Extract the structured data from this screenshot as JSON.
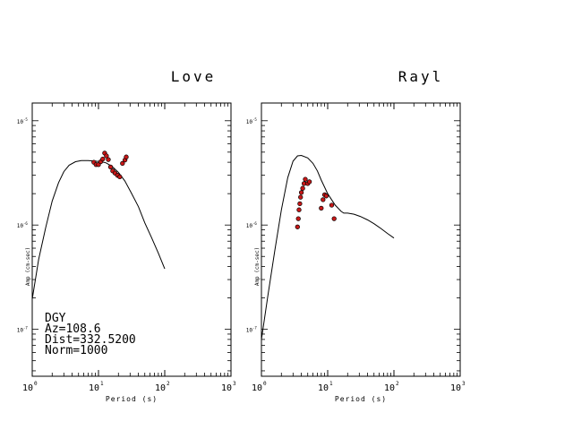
{
  "chart_data": [
    {
      "type": "line",
      "title": "Love",
      "xlabel": "Period (s)",
      "ylabel": "Amp (cm-sec)",
      "xscale": "log",
      "yscale": "log",
      "xlim": [
        1,
        1000
      ],
      "ylim": [
        1e-07,
        1e-05
      ],
      "x_ticks": [
        {
          "value": 1,
          "mant": "10",
          "exp": "0"
        },
        {
          "value": 10,
          "mant": "10",
          "exp": "1"
        },
        {
          "value": 100,
          "mant": "10",
          "exp": "2"
        },
        {
          "value": 1000,
          "mant": "10",
          "exp": "3"
        }
      ],
      "y_ticks": [
        {
          "value": 1e-05,
          "mant": "10",
          "exp": "-5"
        },
        {
          "value": 1e-06,
          "mant": "10",
          "exp": "-6"
        },
        {
          "value": 1e-07,
          "mant": "10",
          "exp": "-7"
        }
      ],
      "series": [
        {
          "kind": "line",
          "x": [
            1,
            1.25,
            1.6,
            2,
            2.5,
            3,
            3.6,
            4.5,
            5.5,
            7,
            9,
            11,
            13,
            16,
            20,
            25,
            31,
            40,
            50,
            63,
            80,
            100
          ],
          "y": [
            1.95e-07,
            4.7e-07,
            9.5e-07,
            1.7e-06,
            2.55e-06,
            3.25e-06,
            3.75e-06,
            4.05e-06,
            4.15e-06,
            4.15e-06,
            4.1e-06,
            4.05e-06,
            3.95e-06,
            3.65e-06,
            3.2e-06,
            2.65e-06,
            2.05e-06,
            1.5e-06,
            1.05e-06,
            7.6e-07,
            5.4e-07,
            3.8e-07
          ]
        },
        {
          "kind": "scatter",
          "x": [
            8.5,
            9.2,
            10,
            10.8,
            11.6,
            12.4,
            13.2,
            14.1,
            15.2,
            16.4,
            17.8,
            19.4,
            21,
            23,
            25.1,
            26.2
          ],
          "y": [
            4e-06,
            3.8e-06,
            3.8e-06,
            4.05e-06,
            4.3e-06,
            4.9e-06,
            4.6e-06,
            4.25e-06,
            3.6e-06,
            3.3e-06,
            3.15e-06,
            3e-06,
            2.9e-06,
            3.9e-06,
            4.2e-06,
            4.5e-06
          ]
        }
      ],
      "annotations": [
        "DGY",
        "Az=108.6",
        "Dist=332.5200",
        "Norm=1000"
      ]
    },
    {
      "type": "line",
      "title": "Rayl",
      "xlabel": "Period (s)",
      "ylabel": "Amp (cm-sec)",
      "xscale": "log",
      "yscale": "log",
      "xlim": [
        1,
        1000
      ],
      "ylim": [
        1e-07,
        1e-05
      ],
      "x_ticks": [
        {
          "value": 1,
          "mant": "10",
          "exp": "0"
        },
        {
          "value": 10,
          "mant": "10",
          "exp": "1"
        },
        {
          "value": 100,
          "mant": "10",
          "exp": "2"
        },
        {
          "value": 1000,
          "mant": "10",
          "exp": "3"
        }
      ],
      "y_ticks": [
        {
          "value": 1e-05,
          "mant": "10",
          "exp": "-5"
        },
        {
          "value": 1e-06,
          "mant": "10",
          "exp": "-6"
        },
        {
          "value": 1e-07,
          "mant": "10",
          "exp": "-7"
        }
      ],
      "series": [
        {
          "kind": "line",
          "x": [
            1,
            1.25,
            1.6,
            2,
            2.5,
            3,
            3.5,
            4,
            5,
            6,
            7,
            8,
            10,
            13,
            16,
            17.5,
            20,
            25,
            31,
            40,
            50,
            63,
            80,
            100
          ],
          "y": [
            8e-08,
            2.1e-07,
            5.8e-07,
            1.4e-06,
            2.85e-06,
            4.1e-06,
            4.6e-06,
            4.65e-06,
            4.4e-06,
            3.9e-06,
            3.3e-06,
            2.7e-06,
            2e-06,
            1.55e-06,
            1.35e-06,
            1.3e-06,
            1.3e-06,
            1.27e-06,
            1.21e-06,
            1.12e-06,
            1.03e-06,
            9.3e-07,
            8.3e-07,
            7.5e-07
          ]
        },
        {
          "kind": "scatter",
          "x": [
            3.5,
            3.6,
            3.7,
            3.8,
            3.9,
            4.0,
            4.2,
            4.4,
            4.6,
            5.0,
            5.3,
            8.0,
            8.5,
            9.0,
            9.5,
            11.5,
            12.5
          ],
          "y": [
            9.6e-07,
            1.15e-06,
            1.4e-06,
            1.6e-06,
            1.85e-06,
            2.05e-06,
            2.25e-06,
            2.5e-06,
            2.75e-06,
            2.5e-06,
            2.6e-06,
            1.45e-06,
            1.75e-06,
            1.95e-06,
            1.9e-06,
            1.55e-06,
            1.15e-06
          ]
        }
      ]
    }
  ]
}
